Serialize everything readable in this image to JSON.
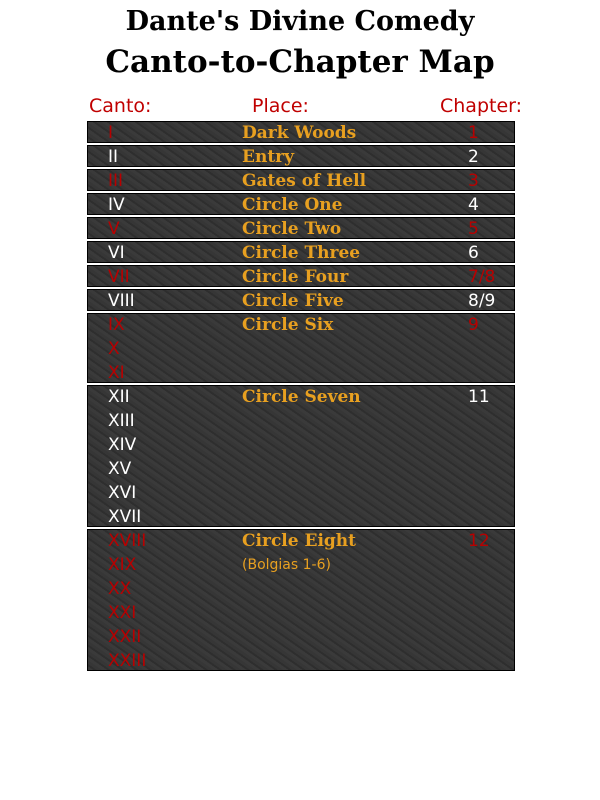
{
  "title_line1": "Dante's Divine Comedy",
  "title_line2": "Canto-to-Chapter Map",
  "headers": {
    "canto": "Canto:",
    "place": "Place:",
    "chapter": "Chapter:"
  },
  "colors": {
    "odd_row_text": "#b80000",
    "even_row_text": "#ffffff",
    "place_text": "#e8a020",
    "header": "#c00000"
  },
  "rows": [
    {
      "cantos": [
        "I"
      ],
      "place": "Dark Woods",
      "chapter": "1"
    },
    {
      "cantos": [
        "II"
      ],
      "place": "Entry",
      "chapter": "2"
    },
    {
      "cantos": [
        "III"
      ],
      "place": "Gates of Hell",
      "chapter": "3"
    },
    {
      "cantos": [
        "IV"
      ],
      "place": "Circle One",
      "chapter": "4"
    },
    {
      "cantos": [
        "V"
      ],
      "place": "Circle Two",
      "chapter": "5"
    },
    {
      "cantos": [
        "VI"
      ],
      "place": "Circle Three",
      "chapter": "6"
    },
    {
      "cantos": [
        "VII"
      ],
      "place": "Circle Four",
      "chapter": "7/8"
    },
    {
      "cantos": [
        "VIII"
      ],
      "place": "Circle Five",
      "chapter": "8/9"
    },
    {
      "cantos": [
        "IX",
        "X",
        "XI"
      ],
      "place": "Circle Six",
      "chapter": "9"
    },
    {
      "cantos": [
        "XII",
        "XIII",
        "XIV",
        "XV",
        "XVI",
        "XVII"
      ],
      "place": "Circle Seven",
      "chapter": "11"
    },
    {
      "cantos": [
        "XVIII",
        "XIX",
        "XX",
        "XXI",
        "XXII",
        "XXIII"
      ],
      "place": "Circle Eight",
      "place_sub": "(Bolgias 1-6)",
      "chapter": "12"
    }
  ]
}
